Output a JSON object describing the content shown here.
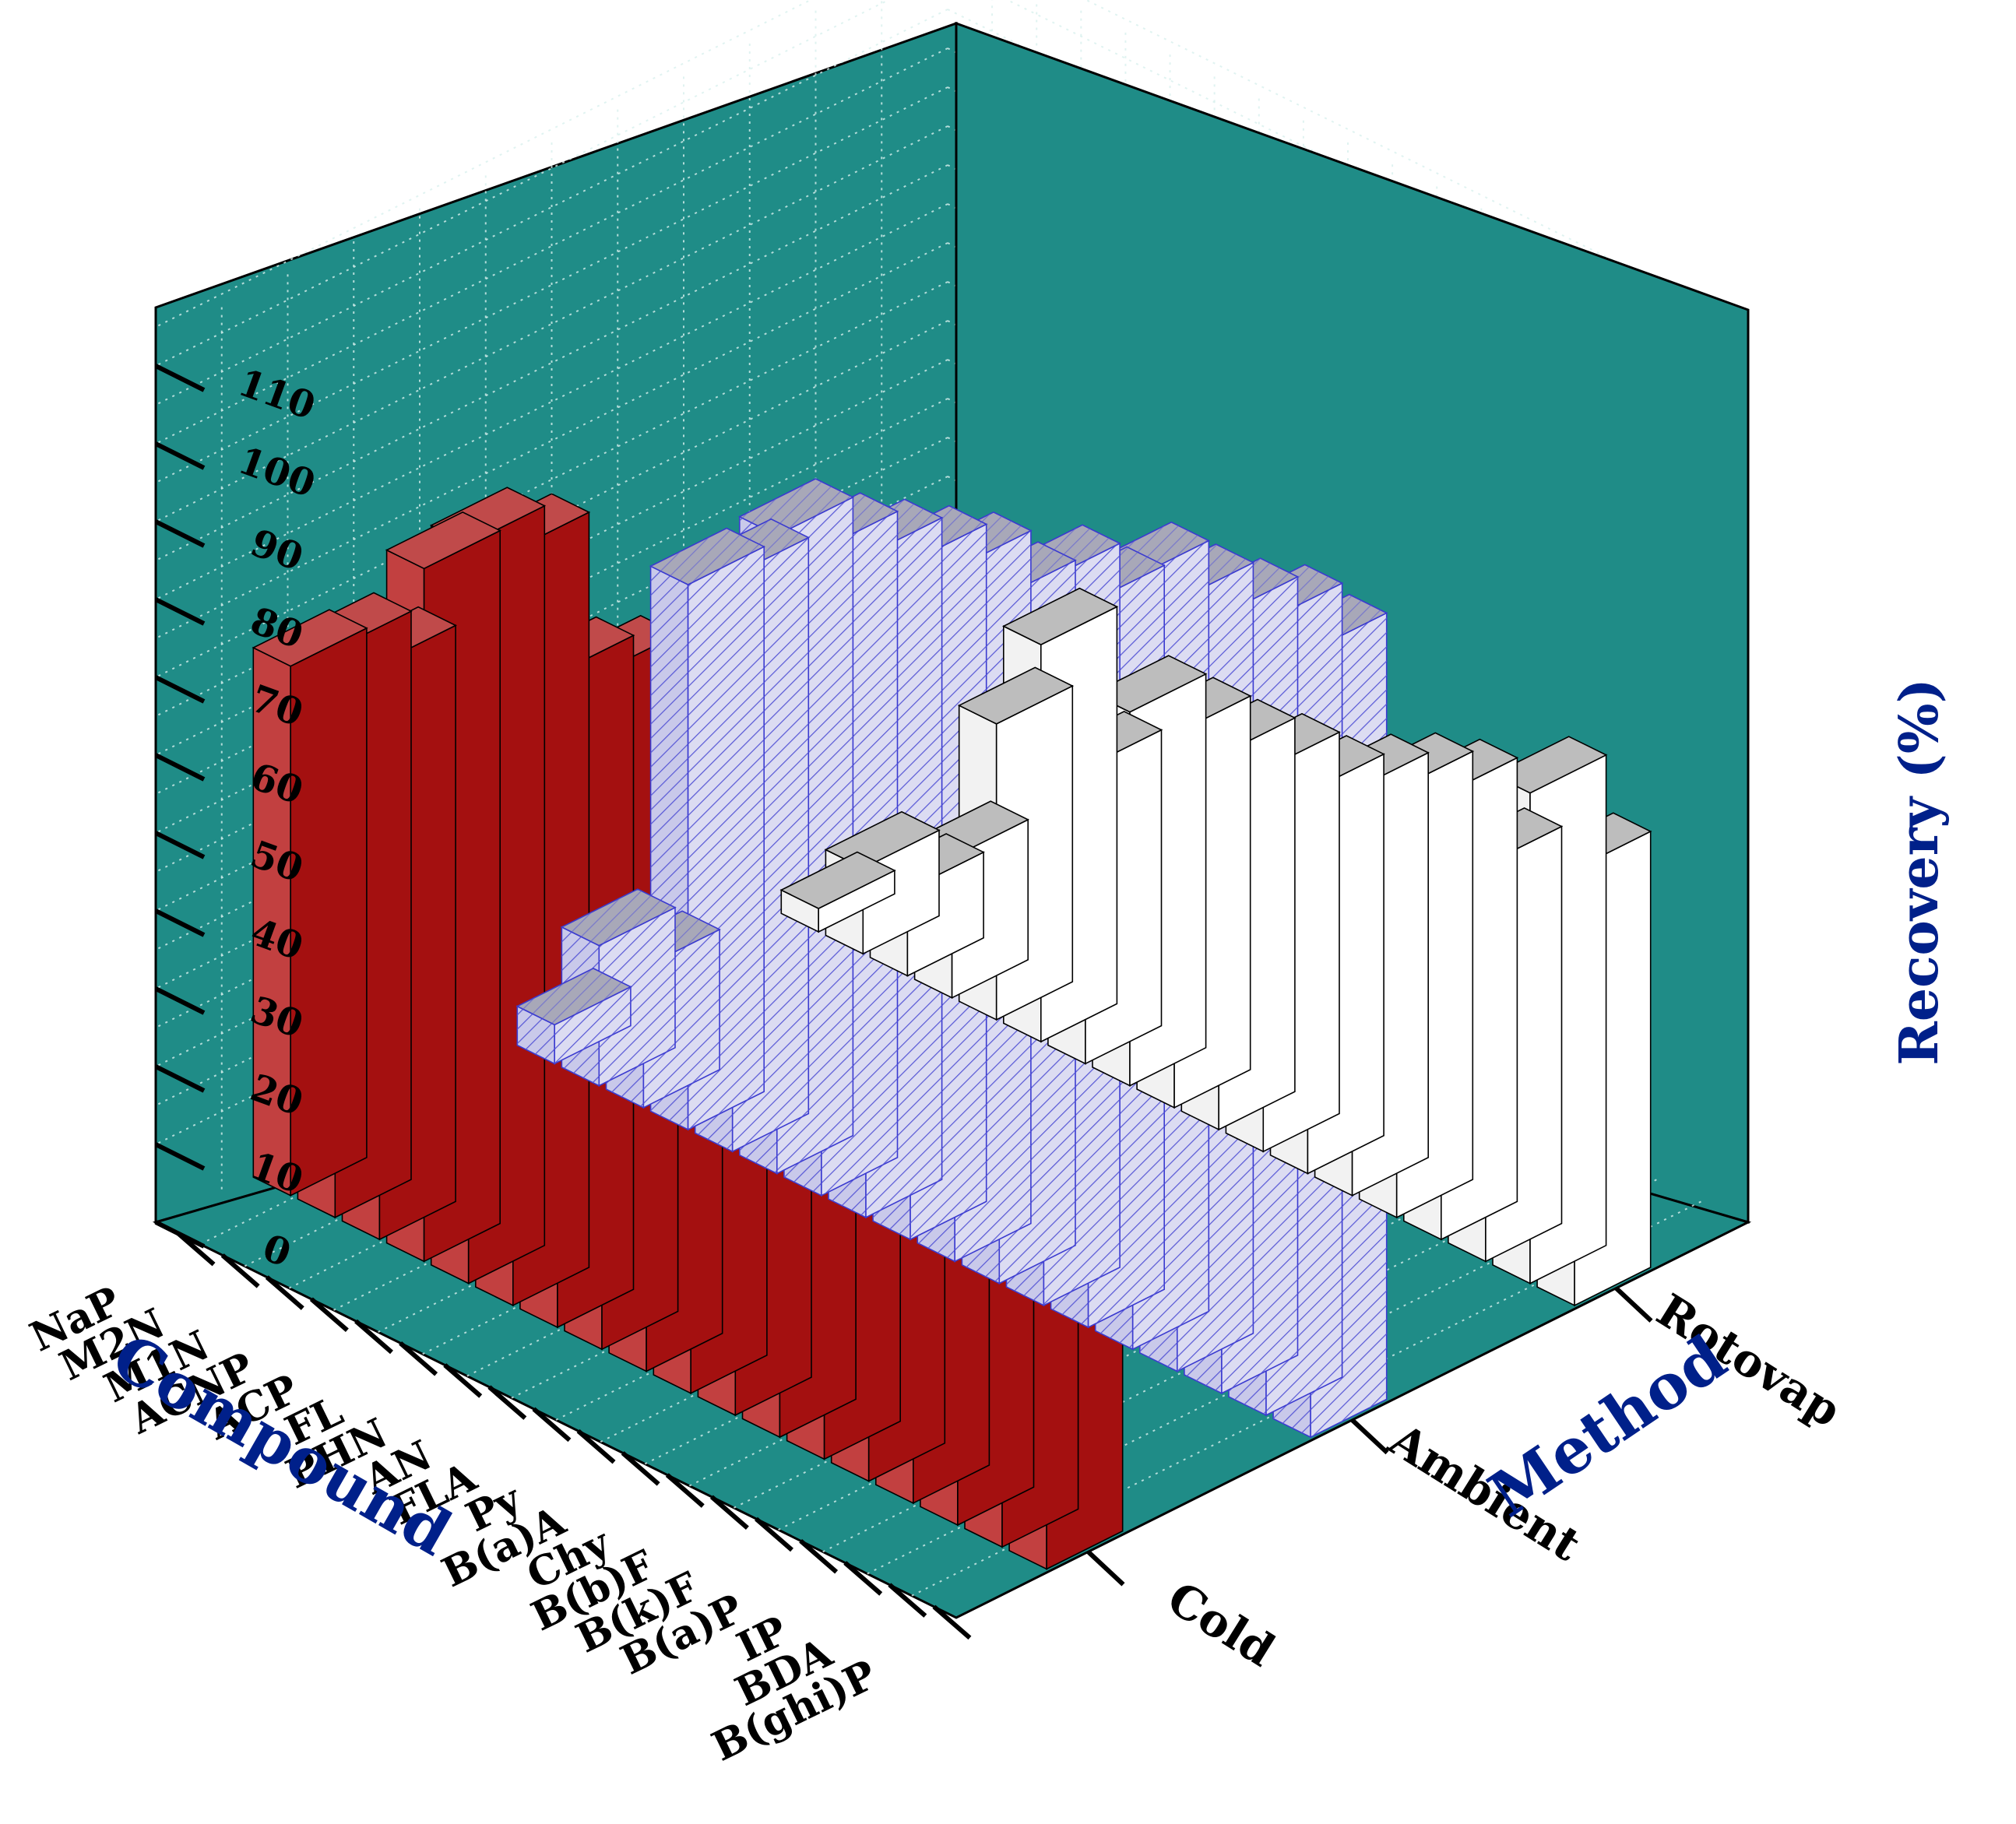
{
  "chart_data": {
    "type": "bar3d",
    "zlabel": "Recovery (%)",
    "xlabel": "Compound",
    "ylabel": "Method",
    "zlim": [
      0,
      115
    ],
    "z_ticks": [
      0,
      10,
      20,
      30,
      40,
      50,
      60,
      70,
      80,
      90,
      100,
      110
    ],
    "categories": [
      "B(ghi)P",
      "BDA",
      "IP",
      "B(a)P",
      "B(k)F",
      "B(b)F",
      "Chy",
      "B(a)A",
      "Py",
      "FLA",
      "AN",
      "PHN",
      "FL",
      "ACP",
      "ACNP",
      "M1N",
      "M2N",
      "NaP"
    ],
    "methods": [
      "Rotovap",
      "Ambient",
      "Cold"
    ],
    "series": [
      {
        "name": "Rotovap",
        "color": "#ffffff",
        "values": [
          56,
          63,
          51,
          57,
          55,
          52,
          49,
          49,
          48,
          48,
          48,
          38,
          51,
          38,
          18,
          11,
          11,
          3
        ]
      },
      {
        "name": "Ambient",
        "color": "#d6d6f0",
        "values": [
          101,
          102,
          100,
          99,
          99,
          93,
          93,
          88,
          89,
          87,
          85,
          83,
          82,
          74,
          70,
          18,
          18,
          5
        ]
      },
      {
        "name": "Cold",
        "color": "#b01e1e",
        "values": [
          114,
          96,
          98,
          100,
          94,
          100,
          96,
          94,
          93,
          89,
          87,
          84,
          97,
          95,
          89,
          74,
          73,
          68
        ]
      }
    ],
    "background_color": "#1f8c87",
    "grid": true
  }
}
